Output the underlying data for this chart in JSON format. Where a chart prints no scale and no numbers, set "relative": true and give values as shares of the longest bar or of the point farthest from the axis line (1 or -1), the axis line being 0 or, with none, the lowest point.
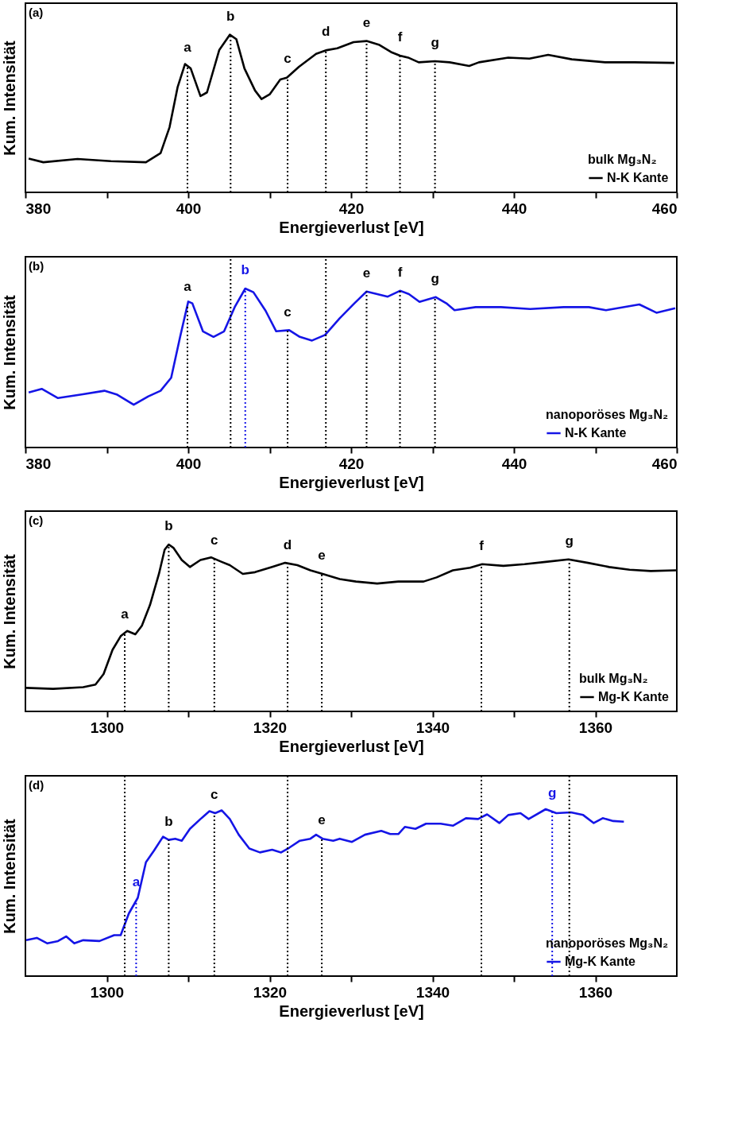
{
  "chart_data": [
    {
      "type": "line",
      "relative": true,
      "xlabel": "Energieverlust [eV]",
      "ylabel": "Kum. Intensität",
      "legend_title": "bulk Mg₃N₂",
      "legend": "bottom right",
      "tick_labels": "x",
      "annotations": [
        "(a)"
      ],
      "xlim": [
        380,
        460
      ],
      "xticks": [
        380,
        {
          "value": 390,
          "label": null
        },
        400,
        {
          "value": 410,
          "label": null
        },
        420,
        {
          "value": 430,
          "label": null
        },
        440,
        {
          "value": 450,
          "label": null
        },
        460
      ],
      "series": [
        {
          "name": "N-K Kante",
          "color": "#000000",
          "x": [
            380.4,
            382.2,
            386.4,
            390.5,
            394.8,
            396.6,
            397.7,
            398.7,
            399.6,
            400.3,
            401.5,
            402.3,
            403.8,
            405.1,
            405.9,
            406.9,
            408.2,
            409.0,
            410.0,
            411.3,
            412.1,
            413.6,
            415.7,
            417.0,
            418.3,
            420.3,
            421.9,
            423.4,
            424.9,
            426.0,
            427.0,
            428.3,
            430.3,
            432.1,
            434.5,
            435.7,
            439.3,
            441.9,
            444.2,
            447.1,
            451.2,
            454.8,
            459.7
          ],
          "values": [
            0.214,
            0.191,
            0.212,
            0.198,
            0.191,
            0.249,
            0.413,
            0.669,
            0.814,
            0.786,
            0.611,
            0.634,
            0.902,
            1,
            0.972,
            0.786,
            0.646,
            0.592,
            0.622,
            0.716,
            0.727,
            0.797,
            0.879,
            0.902,
            0.914,
            0.953,
            0.96,
            0.937,
            0.89,
            0.867,
            0.855,
            0.825,
            0.832,
            0.825,
            0.802,
            0.825,
            0.855,
            0.848,
            0.872,
            0.844,
            0.825,
            0.825,
            0.821
          ]
        }
      ],
      "ref_lines": [
        {
          "axis": "x",
          "value": 399.9,
          "label": "a",
          "color": "#000000",
          "line_style": "dotted"
        },
        {
          "axis": "x",
          "value": 405.2,
          "label": "b",
          "color": "#000000",
          "line_style": "dotted"
        },
        {
          "axis": "x",
          "value": 412.2,
          "label": "c",
          "color": "#000000",
          "line_style": "dotted"
        },
        {
          "axis": "x",
          "value": 416.9,
          "label": "d",
          "color": "#000000",
          "line_style": "dotted"
        },
        {
          "axis": "x",
          "value": 421.9,
          "label": "e",
          "color": "#000000",
          "line_style": "dotted"
        },
        {
          "axis": "x",
          "value": 426.0,
          "label": "f",
          "color": "#000000",
          "line_style": "dotted"
        },
        {
          "axis": "x",
          "value": 430.3,
          "label": "g",
          "color": "#000000",
          "line_style": "dotted"
        }
      ]
    },
    {
      "type": "line",
      "relative": true,
      "xlabel": "Energieverlust [eV]",
      "ylabel": "Kum. Intensität",
      "legend_title": "nanoporöses Mg₃N₂",
      "legend": "bottom right",
      "tick_labels": "x",
      "annotations": [
        "(b)"
      ],
      "xlim": [
        380,
        460
      ],
      "xticks": [
        380,
        {
          "value": 390,
          "label": null
        },
        400,
        {
          "value": 410,
          "label": null
        },
        420,
        {
          "value": 430,
          "label": null
        },
        440,
        {
          "value": 450,
          "label": null
        },
        460
      ],
      "series": [
        {
          "name": "N-K Kante",
          "color": "#1515e6",
          "x": [
            380.4,
            382.0,
            384.0,
            386.9,
            389.7,
            391.2,
            393.3,
            395.1,
            396.6,
            397.9,
            399.0,
            400.0,
            400.5,
            401.8,
            403.1,
            404.4,
            405.7,
            407.0,
            408.0,
            409.5,
            410.8,
            412.4,
            413.7,
            415.2,
            416.8,
            418.6,
            420.4,
            421.9,
            423.2,
            424.5,
            426.0,
            427.1,
            428.4,
            430.4,
            431.7,
            432.7,
            435.3,
            438.4,
            442.0,
            446.1,
            449.2,
            451.3,
            455.4,
            457.5,
            459.8
          ],
          "values": [
            0.346,
            0.369,
            0.311,
            0.334,
            0.357,
            0.334,
            0.269,
            0.322,
            0.357,
            0.439,
            0.696,
            0.918,
            0.907,
            0.731,
            0.696,
            0.731,
            0.883,
            1,
            0.977,
            0.86,
            0.731,
            0.738,
            0.696,
            0.673,
            0.708,
            0.813,
            0.907,
            0.981,
            0.965,
            0.949,
            0.986,
            0.965,
            0.916,
            0.946,
            0.907,
            0.864,
            0.883,
            0.883,
            0.871,
            0.883,
            0.883,
            0.864,
            0.9,
            0.848,
            0.876
          ]
        }
      ],
      "ref_lines": [
        {
          "axis": "x",
          "value": 399.9,
          "label": "a",
          "color": "#000000",
          "line_style": "dotted"
        },
        {
          "axis": "x",
          "value": 405.2,
          "color": "#000000",
          "line_style": "dotted"
        },
        {
          "axis": "x",
          "value": 407.0,
          "label": "b",
          "color": "#1515e6",
          "line_style": "dotted"
        },
        {
          "axis": "x",
          "value": 412.2,
          "label": "c",
          "color": "#000000",
          "line_style": "dotted"
        },
        {
          "axis": "x",
          "value": 416.9,
          "color": "#000000",
          "line_style": "dotted"
        },
        {
          "axis": "x",
          "value": 421.9,
          "label": "e",
          "color": "#000000",
          "line_style": "dotted"
        },
        {
          "axis": "x",
          "value": 426.0,
          "label": "f",
          "color": "#000000",
          "line_style": "dotted"
        },
        {
          "axis": "x",
          "value": 430.3,
          "label": "g",
          "color": "#000000",
          "line_style": "dotted"
        }
      ]
    },
    {
      "type": "line",
      "relative": true,
      "xlabel": "Energieverlust [eV]",
      "ylabel": "Kum. Intensität",
      "legend_title": "bulk Mg₃N₂",
      "legend": "bottom right",
      "tick_labels": "x",
      "annotations": [
        "(c)"
      ],
      "xlim": [
        1290,
        1370
      ],
      "xticks": [
        1300,
        {
          "value": 1310,
          "label": null
        },
        1320,
        {
          "value": 1330,
          "label": null
        },
        1340,
        {
          "value": 1350,
          "label": null
        },
        1360
      ],
      "series": [
        {
          "name": "Mg-K Kante",
          "color": "#000000",
          "x": [
            1290.1,
            1293.4,
            1297.1,
            1298.6,
            1299.6,
            1300.7,
            1301.7,
            1302.5,
            1303.5,
            1304.3,
            1305.3,
            1306.4,
            1307.1,
            1307.6,
            1308.2,
            1309.2,
            1310.2,
            1311.5,
            1312.8,
            1314.1,
            1315.1,
            1316.7,
            1318.2,
            1320.3,
            1321.9,
            1323.4,
            1325.0,
            1326.5,
            1328.6,
            1330.6,
            1333.2,
            1335.8,
            1338.9,
            1340.5,
            1342.5,
            1344.6,
            1346.1,
            1348.7,
            1351.3,
            1353.9,
            1356.7,
            1359.1,
            1361.7,
            1364.2,
            1366.8,
            1369.9
          ],
          "values": [
            0.141,
            0.135,
            0.145,
            0.161,
            0.224,
            0.369,
            0.451,
            0.482,
            0.462,
            0.513,
            0.638,
            0.824,
            0.969,
            1,
            0.979,
            0.907,
            0.865,
            0.907,
            0.923,
            0.896,
            0.876,
            0.824,
            0.834,
            0.865,
            0.89,
            0.876,
            0.845,
            0.824,
            0.793,
            0.778,
            0.766,
            0.778,
            0.778,
            0.803,
            0.845,
            0.861,
            0.882,
            0.872,
            0.882,
            0.896,
            0.911,
            0.89,
            0.865,
            0.849,
            0.841,
            0.845
          ]
        }
      ],
      "ref_lines": [
        {
          "axis": "x",
          "value": 1302.2,
          "label": "a",
          "color": "#000000",
          "line_style": "dotted"
        },
        {
          "axis": "x",
          "value": 1307.6,
          "label": "b",
          "color": "#000000",
          "line_style": "dotted"
        },
        {
          "axis": "x",
          "value": 1313.2,
          "label": "c",
          "color": "#000000",
          "line_style": "dotted"
        },
        {
          "axis": "x",
          "value": 1322.2,
          "label": "d",
          "color": "#000000",
          "line_style": "dotted"
        },
        {
          "axis": "x",
          "value": 1326.4,
          "label": "e",
          "color": "#000000",
          "line_style": "dotted"
        },
        {
          "axis": "x",
          "value": 1346.0,
          "label": "f",
          "color": "#000000",
          "line_style": "dotted"
        },
        {
          "axis": "x",
          "value": 1356.8,
          "label": "g",
          "color": "#000000",
          "line_style": "dotted"
        }
      ]
    },
    {
      "type": "line",
      "relative": true,
      "xlabel": "Energieverlust [eV]",
      "ylabel": "Kum. Intensität",
      "legend_title": "nanoporöses Mg₃N₂",
      "legend": "bottom right",
      "tick_labels": "x",
      "annotations": [
        "(d)"
      ],
      "xlim": [
        1290,
        1370
      ],
      "xticks": [
        1300,
        {
          "value": 1310,
          "label": null
        },
        1320,
        {
          "value": 1330,
          "label": null
        },
        1340,
        {
          "value": 1350,
          "label": null
        },
        1360
      ],
      "series": [
        {
          "name": "Mg-K Kante",
          "color": "#1515e6",
          "x": [
            1290.1,
            1291.4,
            1292.7,
            1294.0,
            1295.0,
            1296.0,
            1297.1,
            1299.1,
            1300.9,
            1301.7,
            1302.7,
            1303.8,
            1304.8,
            1305.8,
            1306.9,
            1307.6,
            1308.4,
            1309.2,
            1310.2,
            1311.5,
            1312.6,
            1313.3,
            1314.1,
            1315.1,
            1316.2,
            1317.5,
            1318.8,
            1320.3,
            1321.4,
            1322.4,
            1323.7,
            1325.0,
            1325.7,
            1326.5,
            1327.8,
            1328.6,
            1330.1,
            1331.7,
            1333.7,
            1334.8,
            1335.8,
            1336.6,
            1337.9,
            1339.2,
            1341.0,
            1342.5,
            1344.1,
            1345.6,
            1346.7,
            1348.2,
            1349.3,
            1350.8,
            1351.8,
            1353.9,
            1355.2,
            1357.0,
            1358.5,
            1359.8,
            1360.9,
            1362.2,
            1363.5
          ],
          "values": [
            0.215,
            0.229,
            0.196,
            0.21,
            0.238,
            0.196,
            0.215,
            0.21,
            0.245,
            0.245,
            0.375,
            0.469,
            0.682,
            0.752,
            0.835,
            0.816,
            0.823,
            0.811,
            0.882,
            0.941,
            0.988,
            0.976,
            0.993,
            0.941,
            0.847,
            0.764,
            0.741,
            0.757,
            0.741,
            0.769,
            0.811,
            0.823,
            0.847,
            0.823,
            0.811,
            0.823,
            0.804,
            0.847,
            0.87,
            0.851,
            0.851,
            0.894,
            0.882,
            0.913,
            0.913,
            0.901,
            0.946,
            0.941,
            0.969,
            0.917,
            0.965,
            0.976,
            0.941,
            1,
            0.976,
            0.981,
            0.965,
            0.917,
            0.946,
            0.929,
            0.925
          ]
        }
      ],
      "ref_lines": [
        {
          "axis": "x",
          "value": 1302.2,
          "color": "#000000",
          "line_style": "dotted"
        },
        {
          "axis": "x",
          "value": 1303.6,
          "label": "a",
          "color": "#1515e6",
          "line_style": "dotted"
        },
        {
          "axis": "x",
          "value": 1307.6,
          "label": "b",
          "color": "#000000",
          "line_style": "dotted"
        },
        {
          "axis": "x",
          "value": 1313.2,
          "label": "c",
          "color": "#000000",
          "line_style": "dotted"
        },
        {
          "axis": "x",
          "value": 1322.2,
          "color": "#000000",
          "line_style": "dotted"
        },
        {
          "axis": "x",
          "value": 1326.4,
          "label": "e",
          "color": "#000000",
          "line_style": "dotted"
        },
        {
          "axis": "x",
          "value": 1346.0,
          "color": "#000000",
          "line_style": "dotted"
        },
        {
          "axis": "x",
          "value": 1354.7,
          "label": "g",
          "color": "#1515e6",
          "line_style": "dotted"
        },
        {
          "axis": "x",
          "value": 1356.8,
          "color": "#000000",
          "line_style": "dotted"
        }
      ]
    }
  ]
}
